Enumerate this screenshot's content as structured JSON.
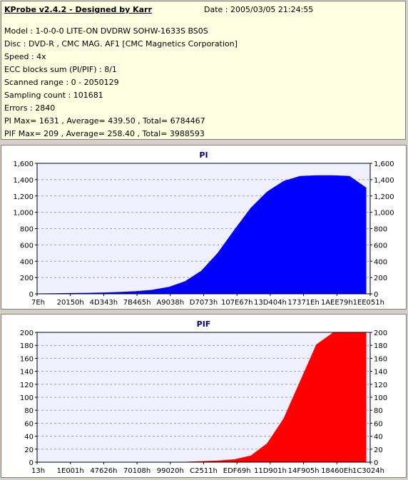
{
  "header": {
    "title": "KProbe v2.4.2 - Designed by Karr",
    "date": "Date : 2005/03/05 21:24:55"
  },
  "info_lines": [
    "Model : 1-0-0-0 LITE-ON DVDRW SOHW-1633S BS0S",
    "Disc : DVD-R , CMC MAG. AF1 [CMC Magnetics Corporation]",
    "Speed : 4x",
    "ECC blocks sum (PI/PIF) : 8/1",
    "Scanned range : 0 - 2050129",
    "Sampling count : 101681",
    "Errors : 2840",
    "PI Max= 1631 , Average= 439.50 , Total= 6784467",
    "PIF Max= 209 , Average= 258.40 , Total= 3988593"
  ],
  "colors": {
    "pi": "#0000ff",
    "pif": "#ff0000",
    "plot_bg": "#f0f0ff",
    "grid": "#a0a0c0"
  },
  "chart_data": [
    {
      "type": "area",
      "title": "PI",
      "ylim": [
        0,
        1600
      ],
      "yticks": [
        "0",
        "200",
        "400",
        "600",
        "800",
        "1,000",
        "1,200",
        "1,400",
        "1,600"
      ],
      "xticks": [
        "7Eh",
        "20150h",
        "4D343h",
        "7B465h",
        "A9038h",
        "D7073h",
        "107E67h",
        "13D404h",
        "17371Eh",
        "1AEE79h",
        "1EE051h"
      ],
      "grid": true,
      "x": [
        0,
        5,
        10,
        15,
        20,
        25,
        30,
        35,
        40,
        45,
        50,
        55,
        60,
        65,
        70,
        75,
        80,
        85,
        90,
        95,
        100
      ],
      "values": [
        0,
        2,
        5,
        8,
        12,
        18,
        28,
        45,
        80,
        150,
        280,
        500,
        780,
        1050,
        1250,
        1380,
        1440,
        1450,
        1450,
        1440,
        1300
      ]
    },
    {
      "type": "area",
      "title": "PIF",
      "ylim": [
        0,
        210
      ],
      "yticks": [
        "0",
        "20",
        "40",
        "60",
        "80",
        "100",
        "120",
        "140",
        "160",
        "180",
        "200"
      ],
      "xticks": [
        "13h",
        "1E001h",
        "47626h",
        "70108h",
        "99020h",
        "C2511h",
        "EDF69h",
        "11D901h",
        "14F905h",
        "18460Eh",
        "1C3024h"
      ],
      "grid": true,
      "x": [
        0,
        5,
        10,
        15,
        20,
        25,
        30,
        35,
        40,
        45,
        50,
        55,
        60,
        65,
        70,
        75,
        80,
        85,
        90,
        95,
        100
      ],
      "values": [
        0,
        0,
        0,
        0,
        0,
        0,
        0,
        0,
        0,
        0,
        1,
        2,
        4,
        10,
        30,
        70,
        130,
        190,
        209,
        209,
        209
      ]
    }
  ]
}
